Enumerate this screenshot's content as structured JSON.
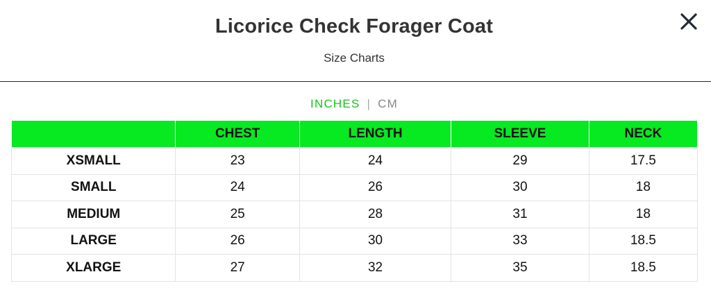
{
  "header": {
    "title": "Licorice Check Forager Coat",
    "subtitle": "Size Charts",
    "close_icon": "close-icon"
  },
  "units": {
    "active": "INCHES",
    "separator": "|",
    "inactive": "CM",
    "active_color": "#11c61a"
  },
  "table": {
    "header_color": "#07e921",
    "columns": [
      "",
      "CHEST",
      "LENGTH",
      "SLEEVE",
      "NECK"
    ],
    "rows": [
      {
        "size": "XSMALL",
        "chest": "23",
        "length": "24",
        "sleeve": "29",
        "neck": "17.5"
      },
      {
        "size": "SMALL",
        "chest": "24",
        "length": "26",
        "sleeve": "30",
        "neck": "18"
      },
      {
        "size": "MEDIUM",
        "chest": "25",
        "length": "28",
        "sleeve": "31",
        "neck": "18"
      },
      {
        "size": "LARGE",
        "chest": "26",
        "length": "30",
        "sleeve": "33",
        "neck": "18.5"
      },
      {
        "size": "XLARGE",
        "chest": "27",
        "length": "32",
        "sleeve": "35",
        "neck": "18.5"
      }
    ]
  }
}
